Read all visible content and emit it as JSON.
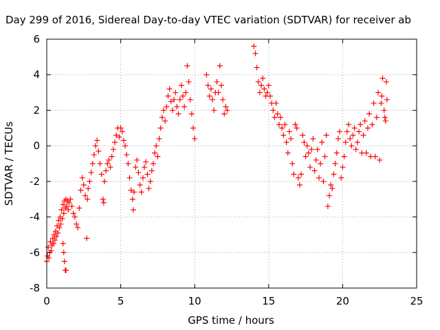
{
  "chart_data": {
    "type": "scatter",
    "title": "Day 299 of 2016, Sidereal Day-to-day VTEC variation (SDTVAR) for receiver ab",
    "xlabel": "GPS time / hours",
    "ylabel": "SDTVAR / TECUs",
    "xlim": [
      0,
      25
    ],
    "ylim": [
      -8,
      6
    ],
    "xticks": [
      0,
      5,
      10,
      15,
      20,
      25
    ],
    "yticks": [
      -8,
      -6,
      -4,
      -2,
      0,
      2,
      4,
      6
    ],
    "grid": true,
    "marker": "+",
    "color": "#ff0000",
    "series": [
      {
        "values": [
          [
            0.0,
            -6.5
          ],
          [
            0.05,
            -6.2
          ],
          [
            0.1,
            -5.7
          ],
          [
            0.15,
            -6.3
          ],
          [
            0.2,
            -6.0
          ],
          [
            0.25,
            -5.4
          ],
          [
            0.3,
            -5.9
          ],
          [
            0.35,
            -5.6
          ],
          [
            0.4,
            -5.2
          ],
          [
            0.45,
            -5.5
          ],
          [
            0.5,
            -5.0
          ],
          [
            0.55,
            -5.3
          ],
          [
            0.6,
            -4.8
          ],
          [
            0.65,
            -5.1
          ],
          [
            0.7,
            -4.5
          ],
          [
            0.75,
            -4.9
          ],
          [
            0.8,
            -4.2
          ],
          [
            0.85,
            -4.6
          ],
          [
            0.9,
            -4.0
          ],
          [
            0.95,
            -4.4
          ],
          [
            1.0,
            -3.6
          ],
          [
            1.05,
            -4.1
          ],
          [
            1.1,
            -3.3
          ],
          [
            1.15,
            -3.8
          ],
          [
            1.2,
            -3.1
          ],
          [
            1.25,
            -3.5
          ],
          [
            1.3,
            -3.0
          ],
          [
            1.35,
            -3.4
          ],
          [
            1.4,
            -3.1
          ],
          [
            1.45,
            -3.6
          ],
          [
            1.2,
            -6.5
          ],
          [
            1.25,
            -7.0
          ],
          [
            1.3,
            -7.0
          ],
          [
            1.15,
            -6.0
          ],
          [
            1.1,
            -5.5
          ],
          [
            1.5,
            -3.2
          ],
          [
            1.6,
            -3.0
          ],
          [
            1.7,
            -3.4
          ],
          [
            1.8,
            -3.8
          ],
          [
            1.9,
            -4.0
          ],
          [
            2.0,
            -4.4
          ],
          [
            2.1,
            -4.6
          ],
          [
            2.2,
            -3.5
          ],
          [
            2.3,
            -2.5
          ],
          [
            2.4,
            -1.8
          ],
          [
            2.5,
            -2.2
          ],
          [
            2.6,
            -2.8
          ],
          [
            2.7,
            -5.2
          ],
          [
            2.75,
            -3.0
          ],
          [
            2.8,
            -2.4
          ],
          [
            2.9,
            -2.0
          ],
          [
            3.0,
            -1.5
          ],
          [
            3.1,
            -1.0
          ],
          [
            3.2,
            -0.5
          ],
          [
            3.3,
            0.0
          ],
          [
            3.4,
            0.3
          ],
          [
            3.5,
            -0.3
          ],
          [
            3.6,
            -1.0
          ],
          [
            3.7,
            -1.6
          ],
          [
            3.8,
            -3.0
          ],
          [
            3.85,
            -3.2
          ],
          [
            3.9,
            -2.0
          ],
          [
            4.0,
            -1.4
          ],
          [
            4.1,
            -1.0
          ],
          [
            4.2,
            -0.8
          ],
          [
            4.3,
            -1.2
          ],
          [
            4.4,
            -0.6
          ],
          [
            4.5,
            -0.2
          ],
          [
            4.6,
            0.2
          ],
          [
            4.7,
            0.6
          ],
          [
            4.8,
            1.0
          ],
          [
            4.9,
            0.5
          ],
          [
            5.0,
            1.0
          ],
          [
            5.1,
            0.8
          ],
          [
            5.2,
            0.3
          ],
          [
            5.3,
            0.0
          ],
          [
            5.4,
            -0.5
          ],
          [
            5.5,
            -1.0
          ],
          [
            5.6,
            -1.8
          ],
          [
            5.7,
            -2.5
          ],
          [
            5.8,
            -3.0
          ],
          [
            5.85,
            -3.6
          ],
          [
            5.9,
            -2.6
          ],
          [
            6.0,
            -1.2
          ],
          [
            6.1,
            -0.8
          ],
          [
            6.2,
            -1.5
          ],
          [
            6.3,
            -2.2
          ],
          [
            6.4,
            -2.6
          ],
          [
            6.5,
            -1.8
          ],
          [
            6.6,
            -1.2
          ],
          [
            6.7,
            -0.9
          ],
          [
            6.8,
            -1.6
          ],
          [
            6.9,
            -2.4
          ],
          [
            7.0,
            -2.0
          ],
          [
            7.1,
            -1.4
          ],
          [
            7.2,
            -1.0
          ],
          [
            7.3,
            -0.4
          ],
          [
            7.4,
            0.0
          ],
          [
            7.5,
            -0.6
          ],
          [
            7.6,
            0.4
          ],
          [
            7.7,
            1.0
          ],
          [
            7.8,
            1.6
          ],
          [
            7.9,
            2.0
          ],
          [
            8.0,
            1.4
          ],
          [
            8.1,
            2.2
          ],
          [
            8.2,
            2.8
          ],
          [
            8.3,
            3.2
          ],
          [
            8.4,
            2.5
          ],
          [
            8.5,
            2.0
          ],
          [
            8.6,
            2.6
          ],
          [
            8.7,
            3.0
          ],
          [
            8.8,
            2.2
          ],
          [
            8.9,
            1.8
          ],
          [
            9.0,
            2.6
          ],
          [
            9.1,
            3.4
          ],
          [
            9.2,
            2.8
          ],
          [
            9.3,
            2.2
          ],
          [
            9.4,
            3.0
          ],
          [
            9.5,
            4.5
          ],
          [
            9.6,
            3.6
          ],
          [
            9.7,
            2.6
          ],
          [
            9.8,
            1.8
          ],
          [
            9.9,
            1.0
          ],
          [
            10.0,
            0.4
          ],
          [
            10.8,
            4.0
          ],
          [
            10.9,
            3.4
          ],
          [
            11.0,
            2.8
          ],
          [
            11.1,
            3.2
          ],
          [
            11.2,
            2.6
          ],
          [
            11.3,
            2.0
          ],
          [
            11.4,
            3.0
          ],
          [
            11.5,
            3.6
          ],
          [
            11.6,
            3.0
          ],
          [
            11.7,
            4.5
          ],
          [
            11.8,
            3.4
          ],
          [
            11.9,
            2.6
          ],
          [
            12.0,
            1.8
          ],
          [
            12.1,
            2.2
          ],
          [
            12.2,
            2.0
          ],
          [
            14.0,
            5.6
          ],
          [
            14.1,
            5.2
          ],
          [
            14.2,
            4.4
          ],
          [
            14.3,
            3.6
          ],
          [
            14.4,
            3.0
          ],
          [
            14.5,
            3.4
          ],
          [
            14.6,
            3.8
          ],
          [
            14.7,
            3.2
          ],
          [
            14.8,
            2.8
          ],
          [
            14.9,
            3.0
          ],
          [
            15.0,
            3.4
          ],
          [
            15.1,
            2.8
          ],
          [
            15.2,
            2.4
          ],
          [
            15.3,
            2.0
          ],
          [
            15.4,
            1.6
          ],
          [
            15.5,
            2.4
          ],
          [
            15.6,
            1.8
          ],
          [
            15.7,
            1.2
          ],
          [
            15.8,
            1.6
          ],
          [
            15.9,
            1.0
          ],
          [
            16.0,
            0.6
          ],
          [
            16.1,
            1.2
          ],
          [
            16.2,
            0.2
          ],
          [
            16.3,
            -0.4
          ],
          [
            16.4,
            0.8
          ],
          [
            16.5,
            0.4
          ],
          [
            16.6,
            -1.0
          ],
          [
            16.7,
            -1.6
          ],
          [
            16.8,
            1.2
          ],
          [
            16.9,
            1.0
          ],
          [
            17.0,
            -1.8
          ],
          [
            17.1,
            -2.2
          ],
          [
            17.2,
            -1.6
          ],
          [
            17.3,
            0.6
          ],
          [
            17.4,
            0.2
          ],
          [
            17.5,
            -0.6
          ],
          [
            17.6,
            0.0
          ],
          [
            17.7,
            -0.4
          ],
          [
            17.8,
            -1.2
          ],
          [
            17.9,
            -0.2
          ],
          [
            18.0,
            0.4
          ],
          [
            18.1,
            -1.4
          ],
          [
            18.2,
            -0.8
          ],
          [
            18.3,
            -0.2
          ],
          [
            18.4,
            -1.8
          ],
          [
            18.5,
            -1.0
          ],
          [
            18.6,
            0.2
          ],
          [
            18.7,
            -2.0
          ],
          [
            18.8,
            -0.6
          ],
          [
            18.9,
            0.6
          ],
          [
            19.0,
            -3.4
          ],
          [
            19.1,
            -2.8
          ],
          [
            19.2,
            -2.2
          ],
          [
            19.3,
            -2.4
          ],
          [
            19.4,
            -1.6
          ],
          [
            19.5,
            -1.0
          ],
          [
            19.6,
            -0.4
          ],
          [
            19.7,
            0.4
          ],
          [
            19.8,
            0.8
          ],
          [
            19.9,
            -1.8
          ],
          [
            20.0,
            -1.2
          ],
          [
            20.1,
            -0.6
          ],
          [
            20.2,
            0.2
          ],
          [
            20.3,
            0.8
          ],
          [
            20.4,
            1.2
          ],
          [
            20.5,
            0.4
          ],
          [
            20.6,
            0.0
          ],
          [
            20.7,
            0.6
          ],
          [
            20.8,
            1.0
          ],
          [
            20.9,
            -0.2
          ],
          [
            21.0,
            0.2
          ],
          [
            21.1,
            0.8
          ],
          [
            21.2,
            1.2
          ],
          [
            21.3,
            -0.4
          ],
          [
            21.4,
            0.6
          ],
          [
            21.5,
            1.4
          ],
          [
            21.6,
            -0.4
          ],
          [
            21.7,
            1.0
          ],
          [
            21.8,
            1.8
          ],
          [
            21.9,
            -0.6
          ],
          [
            22.0,
            1.2
          ],
          [
            22.1,
            2.4
          ],
          [
            22.2,
            -0.6
          ],
          [
            22.3,
            1.6
          ],
          [
            22.4,
            3.0
          ],
          [
            22.5,
            -0.8
          ],
          [
            22.6,
            2.4
          ],
          [
            22.7,
            3.8
          ],
          [
            22.8,
            2.0
          ],
          [
            22.9,
            1.4
          ],
          [
            23.0,
            2.6
          ],
          [
            22.95,
            3.6
          ],
          [
            22.85,
            1.6
          ],
          [
            22.65,
            2.8
          ]
        ]
      }
    ]
  }
}
